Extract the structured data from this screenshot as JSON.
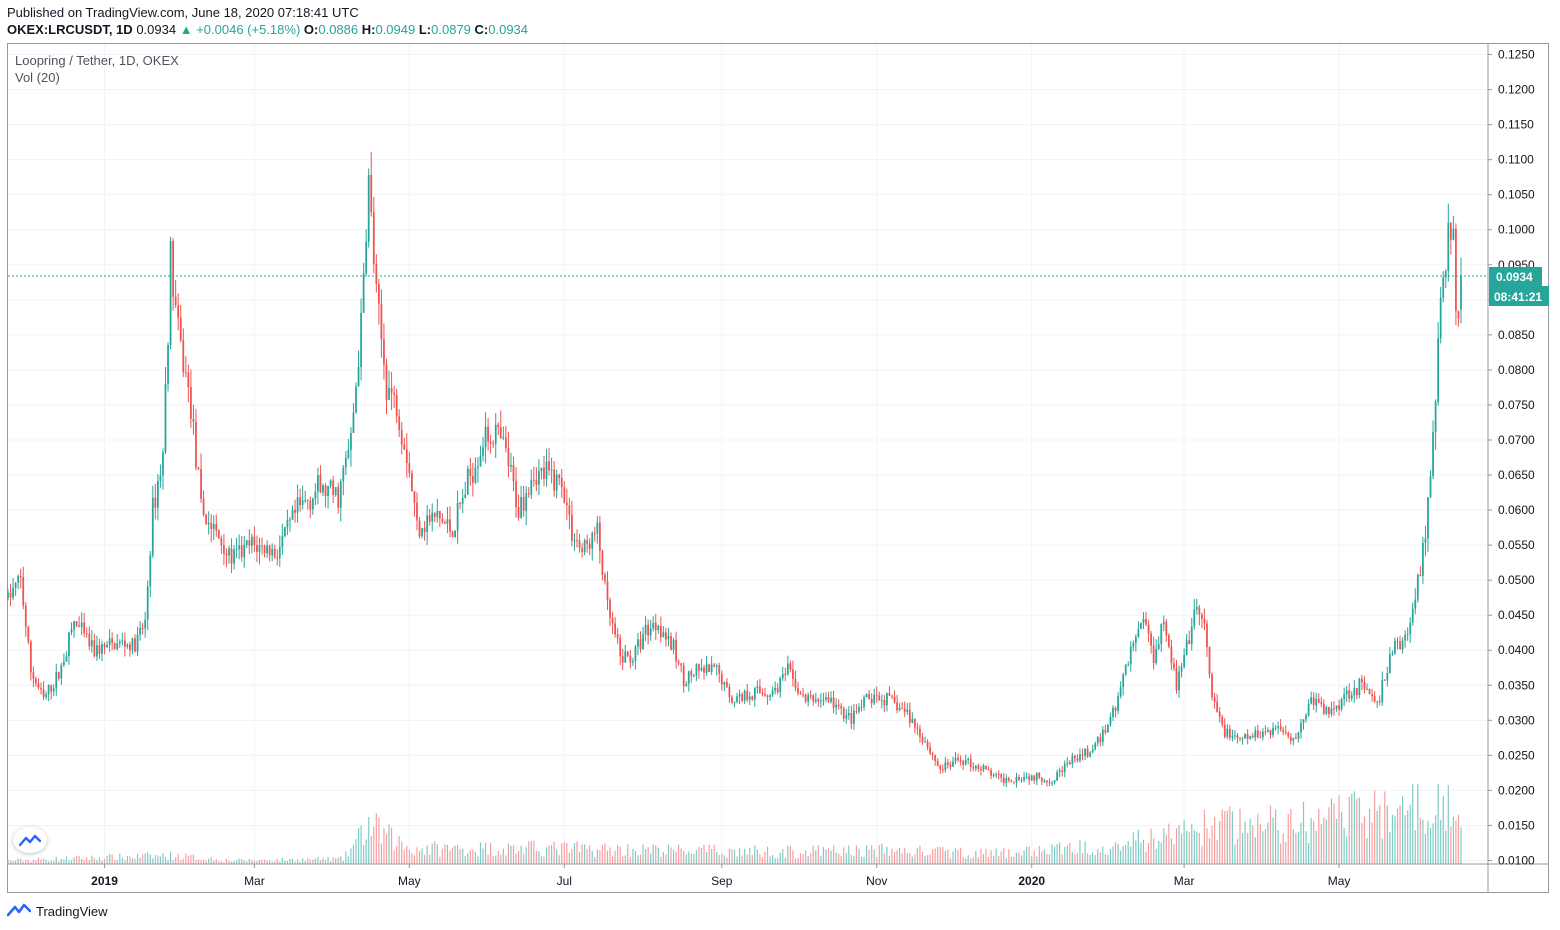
{
  "header": {
    "published": "Published on TradingView.com, June 18, 2020 07:18:41 UTC"
  },
  "quote": {
    "symbol": "OKEX:LRCUSDT, 1D",
    "last": "0.0934",
    "change": "+0.0046 (+5.18%)",
    "o_label": "O:",
    "o_value": "0.0886",
    "h_label": "H:",
    "h_value": "0.0949",
    "l_label": "L:",
    "l_value": "0.0879",
    "c_label": "C:",
    "c_value": "0.0934"
  },
  "legend": {
    "title": "Loopring / Tether, 1D, OKEX",
    "volume": "Vol (20)"
  },
  "price_badge": {
    "price": "0.0934",
    "countdown": "08:41:21"
  },
  "footer": {
    "brand": "TradingView"
  },
  "icons": {
    "up_arrow": "triangle-up-icon",
    "logo": "tradingview-logo-icon"
  },
  "colors": {
    "up": "#26a69a",
    "down": "#ef5350",
    "up_volume": "#80cbc4",
    "down_volume": "#f5a0a0",
    "grid": "#f0f3fa",
    "axis_text": "#131722"
  },
  "chart_data": {
    "type": "candlestick",
    "title": "Loopring / Tether, 1D, OKEX",
    "ylim": [
      0.0095,
      0.1265
    ],
    "y_ticks": [
      "0.1250",
      "0.1200",
      "0.1150",
      "0.1100",
      "0.1050",
      "0.1000",
      "0.0950",
      "0.0900",
      "0.0850",
      "0.0800",
      "0.0750",
      "0.0700",
      "0.0650",
      "0.0600",
      "0.0550",
      "0.0500",
      "0.0450",
      "0.0400",
      "0.0350",
      "0.0300",
      "0.0250",
      "0.0200",
      "0.0150",
      "0.0100"
    ],
    "x_ticks": [
      "2019",
      "Mar",
      "May",
      "Jul",
      "Sep",
      "Nov",
      "2020",
      "Mar",
      "May"
    ],
    "grid": true,
    "last_price": 0.0934,
    "volume_indicator": "Vol (20)",
    "price_path": [
      {
        "x": "2018-11-24",
        "y": 0.0475
      },
      {
        "x": "2018-11-29",
        "y": 0.05
      },
      {
        "x": "2018-12-03",
        "y": 0.037
      },
      {
        "x": "2018-12-08",
        "y": 0.033
      },
      {
        "x": "2018-12-14",
        "y": 0.0365
      },
      {
        "x": "2018-12-20",
        "y": 0.044
      },
      {
        "x": "2018-12-28",
        "y": 0.04
      },
      {
        "x": "2019-01-08",
        "y": 0.041
      },
      {
        "x": "2019-01-13",
        "y": 0.0405
      },
      {
        "x": "2019-01-17",
        "y": 0.044
      },
      {
        "x": "2019-01-20",
        "y": 0.06
      },
      {
        "x": "2019-01-24",
        "y": 0.068
      },
      {
        "x": "2019-01-27",
        "y": 0.096
      },
      {
        "x": "2019-01-30",
        "y": 0.085
      },
      {
        "x": "2019-02-04",
        "y": 0.075
      },
      {
        "x": "2019-02-08",
        "y": 0.06
      },
      {
        "x": "2019-02-15",
        "y": 0.056
      },
      {
        "x": "2019-02-20",
        "y": 0.053
      },
      {
        "x": "2019-02-28",
        "y": 0.055
      },
      {
        "x": "2019-03-10",
        "y": 0.054
      },
      {
        "x": "2019-03-18",
        "y": 0.06
      },
      {
        "x": "2019-03-26",
        "y": 0.063
      },
      {
        "x": "2019-04-03",
        "y": 0.062
      },
      {
        "x": "2019-04-08",
        "y": 0.07
      },
      {
        "x": "2019-04-12",
        "y": 0.086
      },
      {
        "x": "2019-04-15",
        "y": 0.107
      },
      {
        "x": "2019-04-18",
        "y": 0.09
      },
      {
        "x": "2019-04-22",
        "y": 0.078
      },
      {
        "x": "2019-04-26",
        "y": 0.075
      },
      {
        "x": "2019-04-30",
        "y": 0.068
      },
      {
        "x": "2019-05-04",
        "y": 0.058
      },
      {
        "x": "2019-05-12",
        "y": 0.059
      },
      {
        "x": "2019-05-18",
        "y": 0.057
      },
      {
        "x": "2019-05-24",
        "y": 0.064
      },
      {
        "x": "2019-05-30",
        "y": 0.07
      },
      {
        "x": "2019-06-04",
        "y": 0.071
      },
      {
        "x": "2019-06-08",
        "y": 0.068
      },
      {
        "x": "2019-06-13",
        "y": 0.06
      },
      {
        "x": "2019-06-18",
        "y": 0.065
      },
      {
        "x": "2019-06-25",
        "y": 0.065
      },
      {
        "x": "2019-06-30",
        "y": 0.064
      },
      {
        "x": "2019-07-04",
        "y": 0.057
      },
      {
        "x": "2019-07-08",
        "y": 0.054
      },
      {
        "x": "2019-07-14",
        "y": 0.057
      },
      {
        "x": "2019-07-18",
        "y": 0.046
      },
      {
        "x": "2019-07-23",
        "y": 0.039
      },
      {
        "x": "2019-07-28",
        "y": 0.039
      },
      {
        "x": "2019-08-02",
        "y": 0.043
      },
      {
        "x": "2019-08-07",
        "y": 0.044
      },
      {
        "x": "2019-08-13",
        "y": 0.04
      },
      {
        "x": "2019-08-17",
        "y": 0.036
      },
      {
        "x": "2019-08-24",
        "y": 0.037
      },
      {
        "x": "2019-08-30",
        "y": 0.037
      },
      {
        "x": "2019-09-05",
        "y": 0.033
      },
      {
        "x": "2019-09-13",
        "y": 0.034
      },
      {
        "x": "2019-09-21",
        "y": 0.034
      },
      {
        "x": "2019-09-27",
        "y": 0.037
      },
      {
        "x": "2019-10-03",
        "y": 0.033
      },
      {
        "x": "2019-10-13",
        "y": 0.033
      },
      {
        "x": "2019-10-22",
        "y": 0.03
      },
      {
        "x": "2019-10-28",
        "y": 0.033
      },
      {
        "x": "2019-11-05",
        "y": 0.033
      },
      {
        "x": "2019-11-13",
        "y": 0.031
      },
      {
        "x": "2019-11-20",
        "y": 0.027
      },
      {
        "x": "2019-11-26",
        "y": 0.023
      },
      {
        "x": "2019-12-04",
        "y": 0.0245
      },
      {
        "x": "2019-12-13",
        "y": 0.023
      },
      {
        "x": "2019-12-20",
        "y": 0.0215
      },
      {
        "x": "2019-12-30",
        "y": 0.022
      },
      {
        "x": "2020-01-08",
        "y": 0.0215
      },
      {
        "x": "2020-01-16",
        "y": 0.024
      },
      {
        "x": "2020-01-26",
        "y": 0.026
      },
      {
        "x": "2020-02-03",
        "y": 0.032
      },
      {
        "x": "2020-02-09",
        "y": 0.04
      },
      {
        "x": "2020-02-14",
        "y": 0.045
      },
      {
        "x": "2020-02-18",
        "y": 0.039
      },
      {
        "x": "2020-02-22",
        "y": 0.045
      },
      {
        "x": "2020-02-27",
        "y": 0.035
      },
      {
        "x": "2020-03-02",
        "y": 0.04
      },
      {
        "x": "2020-03-06",
        "y": 0.046
      },
      {
        "x": "2020-03-09",
        "y": 0.043
      },
      {
        "x": "2020-03-12",
        "y": 0.033
      },
      {
        "x": "2020-03-16",
        "y": 0.029
      },
      {
        "x": "2020-03-22",
        "y": 0.027
      },
      {
        "x": "2020-03-30",
        "y": 0.028
      },
      {
        "x": "2020-04-07",
        "y": 0.029
      },
      {
        "x": "2020-04-14",
        "y": 0.0275
      },
      {
        "x": "2020-04-20",
        "y": 0.033
      },
      {
        "x": "2020-04-27",
        "y": 0.031
      },
      {
        "x": "2020-05-04",
        "y": 0.034
      },
      {
        "x": "2020-05-10",
        "y": 0.035
      },
      {
        "x": "2020-05-16",
        "y": 0.032
      },
      {
        "x": "2020-05-22",
        "y": 0.04
      },
      {
        "x": "2020-05-28",
        "y": 0.042
      },
      {
        "x": "2020-06-01",
        "y": 0.05
      },
      {
        "x": "2020-06-04",
        "y": 0.057
      },
      {
        "x": "2020-06-07",
        "y": 0.07
      },
      {
        "x": "2020-06-09",
        "y": 0.085
      },
      {
        "x": "2020-06-11",
        "y": 0.092
      },
      {
        "x": "2020-06-13",
        "y": 0.1
      },
      {
        "x": "2020-06-15",
        "y": 0.099
      },
      {
        "x": "2020-06-16",
        "y": 0.088
      },
      {
        "x": "2020-06-17",
        "y": 0.0886
      },
      {
        "x": "2020-06-18",
        "y": 0.0934
      }
    ],
    "volume_path": [
      {
        "x": "2018-11-24",
        "v": 0.4
      },
      {
        "x": "2019-01-27",
        "v": 1.0
      },
      {
        "x": "2019-02-20",
        "v": 0.4
      },
      {
        "x": "2019-04-05",
        "v": 0.6
      },
      {
        "x": "2019-04-15",
        "v": 4.5
      },
      {
        "x": "2019-05-01",
        "v": 1.8
      },
      {
        "x": "2019-07-01",
        "v": 1.8
      },
      {
        "x": "2019-08-05",
        "v": 1.6
      },
      {
        "x": "2019-10-01",
        "v": 1.4
      },
      {
        "x": "2019-11-01",
        "v": 1.6
      },
      {
        "x": "2019-12-20",
        "v": 1.2
      },
      {
        "x": "2020-02-10",
        "v": 2.5
      },
      {
        "x": "2020-03-12",
        "v": 4.5
      },
      {
        "x": "2020-04-20",
        "v": 4.8
      },
      {
        "x": "2020-06-10",
        "v": 7.5
      },
      {
        "x": "2020-06-18",
        "v": 3.8
      }
    ]
  }
}
